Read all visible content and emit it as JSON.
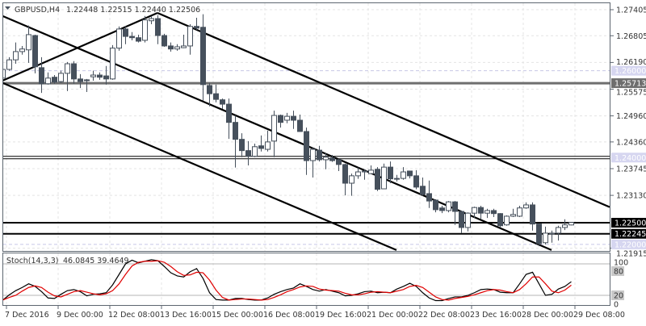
{
  "header": {
    "symbol": "GBPUSD,H4",
    "ohlc": "1.22448 1.22515 1.22440 1.22506",
    "menu_icon": "triangle-down-icon"
  },
  "colors": {
    "bear": "#46505c",
    "bull": "#ffffff",
    "outline": "#46505c",
    "stoch_k": "#000000",
    "stoch_d": "#e00000",
    "support_line": "#000000",
    "pivot_line": "#6e6e6e",
    "round_level_label": "#d6d6f0"
  },
  "chart_data": [
    {
      "type": "candlestick",
      "title": "GBPUSD,H4",
      "ylim": [
        1.21915,
        1.27405
      ],
      "y_ticks": [
        "1.27405",
        "1.26805",
        "1.26190",
        "1.25575",
        "1.24960",
        "1.24360",
        "1.23745",
        "1.23130",
        "1.21915"
      ],
      "x_ticks": [
        "7 Dec 2016",
        "9 Dec 00:00",
        "12 Dec 08:00",
        "13 Dec 16:00",
        "15 Dec 00:00",
        "16 Dec 08:00",
        "19 Dec 16:00",
        "21 Dec 00:00",
        "22 Dec 08:00",
        "23 Dec 16:00",
        "28 Dec 00:00",
        "29 Dec 08:00"
      ],
      "grid": true,
      "candles_ohlc": [
        [
          1.2583,
          1.262,
          1.2583,
          1.2603
        ],
        [
          1.2603,
          1.2631,
          1.26,
          1.2625
        ],
        [
          1.2625,
          1.2665,
          1.2616,
          1.2644
        ],
        [
          1.2644,
          1.2657,
          1.2637,
          1.265
        ],
        [
          1.2648,
          1.2704,
          1.2618,
          1.2683
        ],
        [
          1.2681,
          1.2683,
          1.2594,
          1.2609
        ],
        [
          1.2607,
          1.2631,
          1.2549,
          1.257
        ],
        [
          1.257,
          1.2596,
          1.2568,
          1.2583
        ],
        [
          1.2585,
          1.259,
          1.257,
          1.2574
        ],
        [
          1.2575,
          1.26,
          1.2572,
          1.2594
        ],
        [
          1.2594,
          1.262,
          1.2553,
          1.2616
        ],
        [
          1.2616,
          1.2622,
          1.257,
          1.2581
        ],
        [
          1.2581,
          1.2592,
          1.256,
          1.2575
        ],
        [
          1.2579,
          1.2581,
          1.2551,
          1.2577
        ],
        [
          1.2586,
          1.26,
          1.2577,
          1.259
        ],
        [
          1.259,
          1.2596,
          1.2579,
          1.2585
        ],
        [
          1.2588,
          1.2611,
          1.2568,
          1.2581
        ],
        [
          1.2581,
          1.2659,
          1.2579,
          1.2652
        ],
        [
          1.2652,
          1.2702,
          1.2646,
          1.2696
        ],
        [
          1.2696,
          1.2702,
          1.2661,
          1.2679
        ],
        [
          1.2679,
          1.2689,
          1.267,
          1.2676
        ],
        [
          1.2676,
          1.2683,
          1.2665,
          1.2668
        ],
        [
          1.267,
          1.2726,
          1.2665,
          1.2717
        ],
        [
          1.2715,
          1.2726,
          1.2707,
          1.272
        ],
        [
          1.272,
          1.2728,
          1.2661,
          1.2681
        ],
        [
          1.2681,
          1.2685,
          1.2655,
          1.2657
        ],
        [
          1.2657,
          1.2665,
          1.2644,
          1.265
        ],
        [
          1.265,
          1.2661,
          1.2646,
          1.2655
        ],
        [
          1.2653,
          1.2683,
          1.2652,
          1.2657
        ],
        [
          1.2657,
          1.2707,
          1.2637,
          1.2702
        ],
        [
          1.2702,
          1.2722,
          1.2694,
          1.2698
        ],
        [
          1.27,
          1.273,
          1.2531,
          1.2568
        ],
        [
          1.2566,
          1.2572,
          1.2518,
          1.2547
        ],
        [
          1.2547,
          1.2568,
          1.2527,
          1.2534
        ],
        [
          1.2533,
          1.2536,
          1.2512,
          1.2523
        ],
        [
          1.2523,
          1.2536,
          1.2443,
          1.2481
        ],
        [
          1.2481,
          1.2497,
          1.2377,
          1.2442
        ],
        [
          1.2442,
          1.2456,
          1.2401,
          1.2416
        ],
        [
          1.2416,
          1.2438,
          1.2382,
          1.2403
        ],
        [
          1.2403,
          1.2432,
          1.2401,
          1.2425
        ],
        [
          1.2427,
          1.2451,
          1.2414,
          1.2421
        ],
        [
          1.2419,
          1.2462,
          1.2414,
          1.2436
        ],
        [
          1.2438,
          1.2508,
          1.2401,
          1.2497
        ],
        [
          1.2497,
          1.2499,
          1.2469,
          1.2481
        ],
        [
          1.2486,
          1.2503,
          1.2479,
          1.2495
        ],
        [
          1.2495,
          1.2508,
          1.2466,
          1.2486
        ],
        [
          1.2486,
          1.2499,
          1.246,
          1.246
        ],
        [
          1.246,
          1.2469,
          1.236,
          1.2393
        ],
        [
          1.2393,
          1.2423,
          1.2354,
          1.2419
        ],
        [
          1.2417,
          1.2427,
          1.2391,
          1.2395
        ],
        [
          1.2395,
          1.241,
          1.2373,
          1.2401
        ],
        [
          1.2399,
          1.2406,
          1.239,
          1.2393
        ],
        [
          1.2395,
          1.2397,
          1.2369,
          1.2384
        ],
        [
          1.2384,
          1.2386,
          1.2313,
          1.2341
        ],
        [
          1.2341,
          1.2363,
          1.2312,
          1.2358
        ],
        [
          1.2358,
          1.2377,
          1.2351,
          1.2367
        ],
        [
          1.2367,
          1.2373,
          1.2349,
          1.2369
        ],
        [
          1.2363,
          1.2382,
          1.2362,
          1.2371
        ],
        [
          1.2373,
          1.2378,
          1.2323,
          1.2327
        ],
        [
          1.2328,
          1.2386,
          1.2327,
          1.2378
        ],
        [
          1.2378,
          1.2391,
          1.2341,
          1.2351
        ],
        [
          1.2352,
          1.236,
          1.2345,
          1.2352
        ],
        [
          1.2352,
          1.2378,
          1.2349,
          1.2367
        ],
        [
          1.2369,
          1.2369,
          1.2352,
          1.2358
        ],
        [
          1.2358,
          1.2371,
          1.2327,
          1.2332
        ],
        [
          1.2334,
          1.2354,
          1.2312,
          1.2315
        ],
        [
          1.2317,
          1.2347,
          1.2284,
          1.23
        ],
        [
          1.2302,
          1.2304,
          1.2274,
          1.228
        ],
        [
          1.2284,
          1.2289,
          1.2272,
          1.2278
        ],
        [
          1.2278,
          1.23,
          1.2274,
          1.2298
        ],
        [
          1.2298,
          1.23,
          1.2245,
          1.2276
        ],
        [
          1.2276,
          1.2278,
          1.2226,
          1.2239
        ],
        [
          1.2239,
          1.2274,
          1.223,
          1.2272
        ],
        [
          1.2272,
          1.2287,
          1.2261,
          1.2285
        ],
        [
          1.2285,
          1.2289,
          1.2258,
          1.2272
        ],
        [
          1.2272,
          1.2282,
          1.2261,
          1.2278
        ],
        [
          1.2278,
          1.2282,
          1.2263,
          1.2271
        ],
        [
          1.2271,
          1.2272,
          1.2239,
          1.2243
        ],
        [
          1.2245,
          1.2267,
          1.2243,
          1.2265
        ],
        [
          1.2265,
          1.2282,
          1.2263,
          1.2269
        ],
        [
          1.2265,
          1.2289,
          1.2263,
          1.2284
        ],
        [
          1.2284,
          1.2297,
          1.2282,
          1.2291
        ],
        [
          1.2291,
          1.2297,
          1.2232,
          1.2247
        ],
        [
          1.2247,
          1.2247,
          1.2196,
          1.2202
        ],
        [
          1.2204,
          1.2241,
          1.22,
          1.2226
        ],
        [
          1.2224,
          1.2232,
          1.2204,
          1.2226
        ],
        [
          1.2226,
          1.2243,
          1.2209,
          1.2239
        ],
        [
          1.2239,
          1.2258,
          1.2233,
          1.2245
        ],
        [
          1.22448,
          1.22515,
          1.2244,
          1.22506
        ]
      ],
      "horizontal_levels": [
        {
          "price": "1.25713",
          "style": "pivot"
        },
        {
          "price": "1.24000",
          "style": "double"
        },
        {
          "price": "1.22500",
          "style": "support"
        },
        {
          "price": "1.22245",
          "style": "support"
        },
        {
          "price": "1.26000",
          "style": "round-dashed"
        },
        {
          "price": "1.22000",
          "style": "round-dashed"
        }
      ],
      "trend_lines": [
        {
          "from": [
            0,
            1.2577
          ],
          "to": [
            24,
            1.2733
          ]
        },
        {
          "from": [
            24,
            1.2733
          ],
          "to": [
            94,
            1.2286
          ]
        },
        {
          "from": [
            0,
            1.2726
          ],
          "to": [
            85,
            1.2187
          ]
        },
        {
          "from": [
            0,
            1.2572
          ],
          "to": [
            61,
            1.2187
          ]
        }
      ]
    },
    {
      "type": "line",
      "title": "Stoch(14,3,3)",
      "values_label": "46.0845 39.4649",
      "ylim": [
        0,
        100
      ],
      "y_ticks": [
        "100",
        "80",
        "20",
        "0"
      ],
      "levels": [
        80,
        20
      ],
      "series": [
        {
          "values": [
            11,
            21,
            29,
            35,
            42,
            37,
            27,
            15,
            14,
            22,
            29,
            31,
            27,
            19,
            22,
            23,
            25,
            40,
            60,
            80,
            87,
            82,
            85,
            88,
            86,
            75,
            63,
            57,
            55,
            65,
            71,
            52,
            25,
            12,
            11,
            11,
            14,
            14,
            12,
            11,
            11,
            15,
            22,
            27,
            31,
            34,
            42,
            37,
            31,
            28,
            31,
            28,
            25,
            19,
            20,
            23,
            27,
            28,
            25,
            26,
            25,
            32,
            37,
            43,
            37,
            25,
            15,
            10,
            10,
            14,
            17,
            17,
            20,
            25,
            31,
            32,
            31,
            26,
            25,
            25,
            42,
            60,
            64,
            42,
            20,
            22,
            32,
            37,
            46.08
          ]
        },
        {
          "values": [
            11,
            16,
            20,
            28,
            35,
            38,
            35,
            26,
            19,
            17,
            22,
            27,
            29,
            26,
            23,
            21,
            23,
            29,
            42,
            60,
            76,
            83,
            85,
            85,
            86,
            83,
            75,
            65,
            58,
            59,
            64,
            63,
            49,
            30,
            16,
            11,
            12,
            13,
            13,
            12,
            11,
            12,
            16,
            21,
            27,
            31,
            36,
            38,
            37,
            32,
            30,
            29,
            28,
            24,
            21,
            21,
            23,
            26,
            27,
            26,
            25,
            28,
            31,
            37,
            39,
            35,
            26,
            17,
            12,
            11,
            14,
            16,
            18,
            21,
            25,
            29,
            31,
            30,
            27,
            25,
            31,
            42,
            55,
            55,
            42,
            28,
            25,
            30,
            39.46
          ]
        }
      ]
    }
  ]
}
